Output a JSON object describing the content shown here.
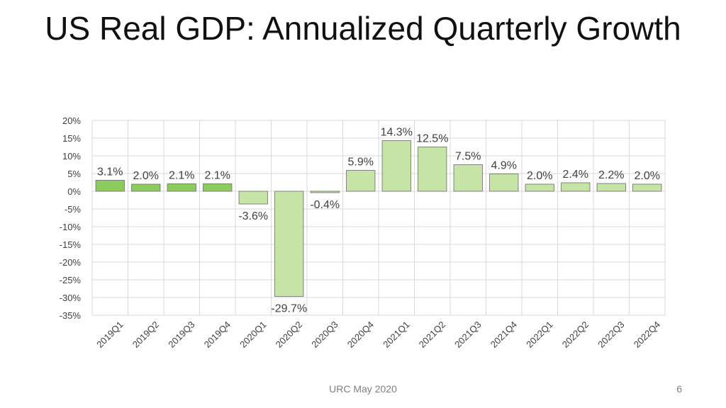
{
  "slide": {
    "title": "US Real GDP: Annualized Quarterly Growth",
    "footer": "URC May 2020",
    "page_number": "6"
  },
  "colors": {
    "bar_fill_solid": "#8ccb5e",
    "bar_fill_light": "#c5e4a6",
    "bar_stroke": "#6a6a6a",
    "grid": "#d9d9d9",
    "text": "#404040"
  },
  "chart_data": {
    "type": "bar",
    "title": "",
    "xlabel": "",
    "ylabel": "",
    "categories": [
      "2019Q1",
      "2019Q2",
      "2019Q3",
      "2019Q4",
      "2020Q1",
      "2020Q2",
      "2020Q3",
      "2020Q4",
      "2021Q1",
      "2021Q2",
      "2021Q3",
      "2021Q4",
      "2022Q1",
      "2022Q2",
      "2022Q3",
      "2022Q4"
    ],
    "values": [
      3.1,
      2.0,
      2.1,
      2.1,
      -3.6,
      -29.7,
      -0.4,
      5.9,
      14.3,
      12.5,
      7.5,
      4.9,
      2.0,
      2.4,
      2.2,
      2.0
    ],
    "data_labels": [
      "3.1%",
      "2.0%",
      "2.1%",
      "2.1%",
      "-3.6%",
      "-29.7%",
      "-0.4%",
      "5.9%",
      "14.3%",
      "12.5%",
      "7.5%",
      "4.9%",
      "2.0%",
      "2.4%",
      "2.2%",
      "2.0%"
    ],
    "series_style": [
      "actual",
      "actual",
      "actual",
      "actual",
      "forecast",
      "forecast",
      "forecast",
      "forecast",
      "forecast",
      "forecast",
      "forecast",
      "forecast",
      "forecast",
      "forecast",
      "forecast",
      "forecast"
    ],
    "ylim": [
      -35,
      20
    ],
    "yticks": [
      20,
      15,
      10,
      5,
      0,
      -5,
      -10,
      -15,
      -20,
      -25,
      -30,
      -35
    ],
    "ytick_labels": [
      "20%",
      "15%",
      "10%",
      "5%",
      "0%",
      "-5%",
      "-10%",
      "-15%",
      "-20%",
      "-25%",
      "-30%",
      "-35%"
    ],
    "grid": true,
    "legend": "none"
  }
}
